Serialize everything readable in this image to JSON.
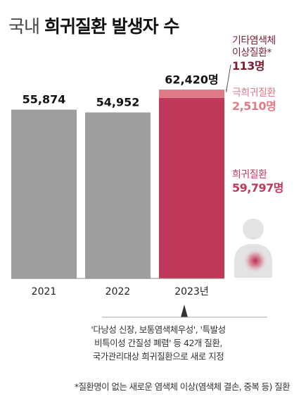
{
  "title": {
    "light": "국내",
    "bold": "희귀질환 발생자 수"
  },
  "chart_data": {
    "type": "bar",
    "stacked": true,
    "categories": [
      "2021",
      "2022",
      "2023년"
    ],
    "totals": [
      55874,
      54952,
      62420
    ],
    "total_labels": [
      "55,874",
      "54,952",
      "62,420명"
    ],
    "series": [
      {
        "name": "희귀질환",
        "values": [
          55874,
          54952,
          59797
        ],
        "color": "#c0395a",
        "prior_color": "#9e9e9e"
      },
      {
        "name": "극희귀질환",
        "values": [
          0,
          0,
          2510
        ],
        "color": "#e07a86"
      },
      {
        "name": "기타염색체 이상질환*",
        "values": [
          0,
          0,
          113
        ],
        "color": "#7a1f33"
      }
    ],
    "ylim": [
      0,
      70000
    ]
  },
  "annotations": [
    {
      "label_lines": [
        "기타염색체",
        "이상질환*"
      ],
      "value": "113명",
      "label_color": "#7a1f33",
      "value_color": "#7a1f33"
    },
    {
      "label_lines": [
        "극희귀질환"
      ],
      "value": "2,510명",
      "label_color": "#e07a86",
      "value_color": "#e07a86"
    },
    {
      "label_lines": [
        "희귀질환"
      ],
      "value": "59,797명",
      "label_color": "#c0395a",
      "value_color": "#c0395a"
    }
  ],
  "note_lines": [
    "'다낭성 신장, 보통염색체우성', '특발성",
    "비특이성 간질성 폐렴' 등 42개 질환,",
    "국가관리대상 희귀질환으로 새로 지정"
  ],
  "footnote": "*질환명이 없는 새로운 염색체 이상(염색체 결손, 중복 등) 질환",
  "icons": [
    "person-icon"
  ],
  "colors": {
    "gray_bar": "#9e9e9e",
    "rare": "#c0395a",
    "ultra_rare": "#e07a86",
    "chromosome": "#7a1f33"
  }
}
